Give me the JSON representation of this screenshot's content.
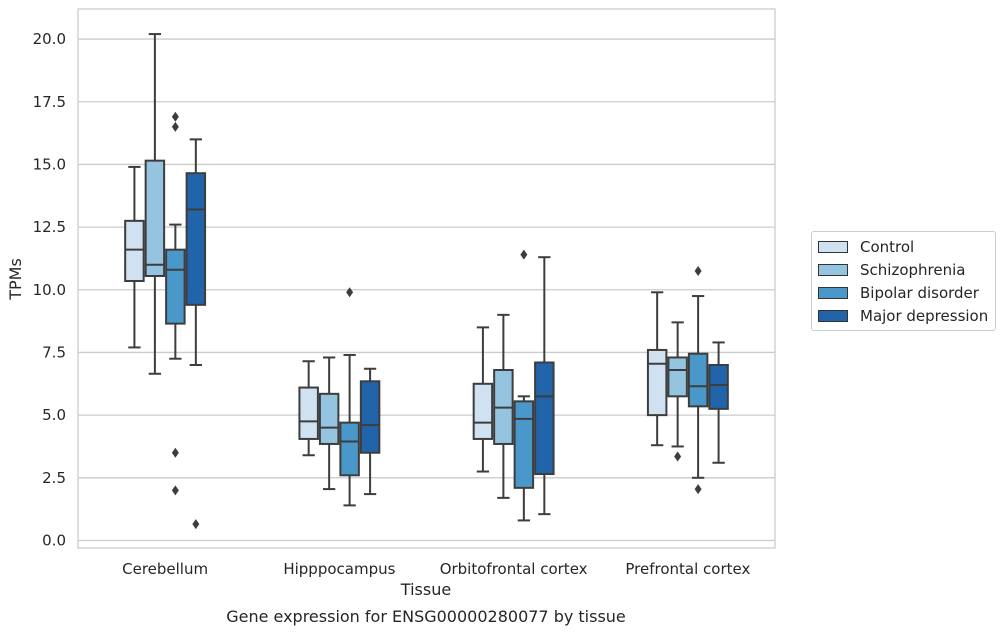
{
  "chart_data": {
    "type": "box",
    "xlabel": "Tissue",
    "ylabel": "TPMs",
    "caption": "Gene expression for ENSG00000280077 by tissue",
    "ylim": [
      -0.3,
      21.2
    ],
    "yticks": [
      "0.0",
      "2.5",
      "5.0",
      "7.5",
      "10.0",
      "12.5",
      "15.0",
      "17.5",
      "20.0"
    ],
    "ytick_values": [
      0,
      2.5,
      5,
      7.5,
      10,
      12.5,
      15,
      17.5,
      20
    ],
    "grid": "horizontal",
    "legend_position": "right-outside",
    "categories": [
      "Cerebellum",
      "Hipppocampus",
      "Orbitofrontal cortex",
      "Prefrontal cortex"
    ],
    "series": [
      {
        "name": "Control",
        "color": "#d0e1f2",
        "boxes": [
          {
            "whislo": 7.7,
            "q1": 10.35,
            "med": 11.6,
            "q3": 12.75,
            "whishi": 14.9,
            "fliers": []
          },
          {
            "whislo": 3.4,
            "q1": 4.05,
            "med": 4.75,
            "q3": 6.1,
            "whishi": 7.15,
            "fliers": []
          },
          {
            "whislo": 2.75,
            "q1": 4.05,
            "med": 4.7,
            "q3": 6.25,
            "whishi": 8.5,
            "fliers": []
          },
          {
            "whislo": 3.8,
            "q1": 5.0,
            "med": 7.05,
            "q3": 7.6,
            "whishi": 9.9,
            "fliers": []
          }
        ]
      },
      {
        "name": "Schizophrenia",
        "color": "#94c4df",
        "boxes": [
          {
            "whislo": 6.65,
            "q1": 10.55,
            "med": 11.0,
            "q3": 15.15,
            "whishi": 20.2,
            "fliers": []
          },
          {
            "whislo": 2.05,
            "q1": 3.85,
            "med": 4.5,
            "q3": 5.85,
            "whishi": 7.3,
            "fliers": []
          },
          {
            "whislo": 1.7,
            "q1": 3.85,
            "med": 5.3,
            "q3": 6.8,
            "whishi": 9.0,
            "fliers": []
          },
          {
            "whislo": 3.75,
            "q1": 5.75,
            "med": 6.8,
            "q3": 7.3,
            "whishi": 8.7,
            "fliers": [
              3.35
            ]
          }
        ]
      },
      {
        "name": "Bipolar disorder",
        "color": "#4a98c9",
        "boxes": [
          {
            "whislo": 7.25,
            "q1": 8.65,
            "med": 10.8,
            "q3": 11.6,
            "whishi": 12.6,
            "fliers": [
              16.9,
              16.5,
              3.5,
              2.0
            ]
          },
          {
            "whislo": 1.4,
            "q1": 2.6,
            "med": 3.95,
            "q3": 4.7,
            "whishi": 7.4,
            "fliers": [
              9.9
            ]
          },
          {
            "whislo": 0.8,
            "q1": 2.1,
            "med": 4.85,
            "q3": 5.55,
            "whishi": 5.75,
            "fliers": [
              11.4
            ]
          },
          {
            "whislo": 2.5,
            "q1": 5.35,
            "med": 6.15,
            "q3": 7.45,
            "whishi": 9.75,
            "fliers": [
              10.75,
              2.05
            ]
          }
        ]
      },
      {
        "name": "Major depression",
        "color": "#2264aa",
        "boxes": [
          {
            "whislo": 7.0,
            "q1": 9.4,
            "med": 13.2,
            "q3": 14.65,
            "whishi": 16.0,
            "fliers": [
              0.65
            ]
          },
          {
            "whislo": 1.85,
            "q1": 3.5,
            "med": 4.6,
            "q3": 6.35,
            "whishi": 6.85,
            "fliers": []
          },
          {
            "whislo": 1.05,
            "q1": 2.65,
            "med": 5.75,
            "q3": 7.1,
            "whishi": 11.3,
            "fliers": []
          },
          {
            "whislo": 3.1,
            "q1": 5.25,
            "med": 6.2,
            "q3": 7.0,
            "whishi": 7.9,
            "fliers": []
          }
        ]
      }
    ]
  }
}
